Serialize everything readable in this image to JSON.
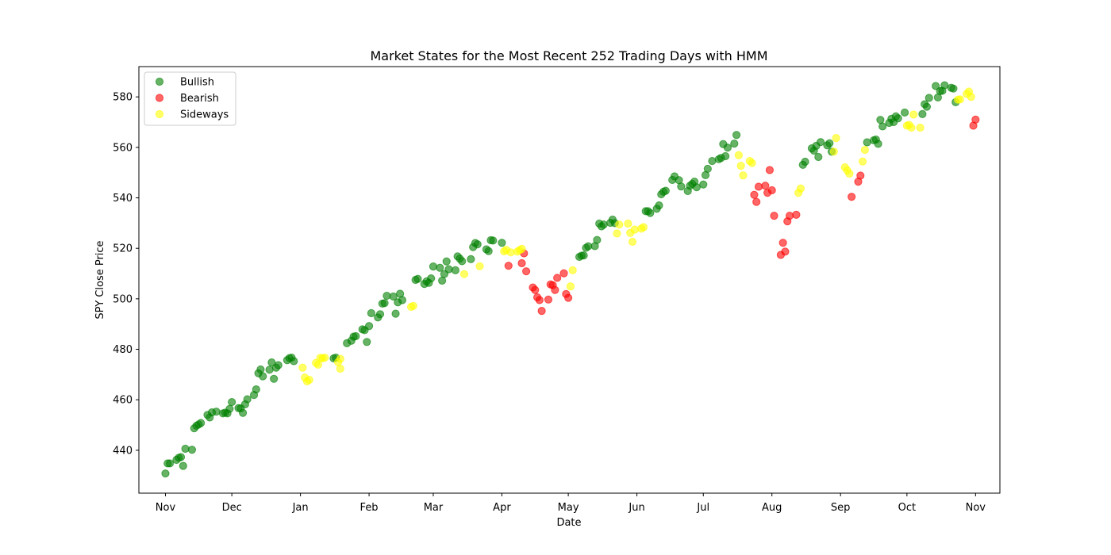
{
  "chart_data": {
    "type": "scatter",
    "title": "Market States for the Most Recent 252 Trading Days with HMM",
    "xlabel": "Date",
    "ylabel": "SPY Close Price",
    "x_axis": "date",
    "xlim": [
      "2023-10-20",
      "2024-11-12"
    ],
    "ylim": [
      423,
      592
    ],
    "yticks": [
      440,
      460,
      480,
      500,
      520,
      540,
      560,
      580
    ],
    "xticks": [
      {
        "date": "2023-11-01",
        "label": "Nov"
      },
      {
        "date": "2023-12-01",
        "label": "Dec"
      },
      {
        "date": "2024-01-01",
        "label": "Jan"
      },
      {
        "date": "2024-02-01",
        "label": "Feb"
      },
      {
        "date": "2024-03-01",
        "label": "Mar"
      },
      {
        "date": "2024-04-01",
        "label": "Apr"
      },
      {
        "date": "2024-05-01",
        "label": "May"
      },
      {
        "date": "2024-06-01",
        "label": "Jun"
      },
      {
        "date": "2024-07-01",
        "label": "Jul"
      },
      {
        "date": "2024-08-01",
        "label": "Aug"
      },
      {
        "date": "2024-09-01",
        "label": "Sep"
      },
      {
        "date": "2024-10-01",
        "label": "Oct"
      },
      {
        "date": "2024-11-01",
        "label": "Nov"
      }
    ],
    "grid": false,
    "legend_position": "top-left",
    "series": [
      {
        "name": "Bullish",
        "color": "#008000",
        "alpha": 0.6,
        "points": [
          [
            "2023-11-01",
            430.8
          ],
          [
            "2023-11-02",
            434.8
          ],
          [
            "2023-11-03",
            434.8
          ],
          [
            "2023-11-06",
            436.2
          ],
          [
            "2023-11-07",
            437.0
          ],
          [
            "2023-11-08",
            437.3
          ],
          [
            "2023-11-09",
            433.8
          ],
          [
            "2023-11-10",
            440.6
          ],
          [
            "2023-11-13",
            440.2
          ],
          [
            "2023-11-14",
            448.7
          ],
          [
            "2023-11-15",
            449.7
          ],
          [
            "2023-11-16",
            450.2
          ],
          [
            "2023-11-17",
            450.8
          ],
          [
            "2023-11-20",
            454.0
          ],
          [
            "2023-11-21",
            453.0
          ],
          [
            "2023-11-22",
            455.0
          ],
          [
            "2023-11-24",
            455.3
          ],
          [
            "2023-11-27",
            454.6
          ],
          [
            "2023-11-28",
            454.9
          ],
          [
            "2023-11-29",
            454.6
          ],
          [
            "2023-11-30",
            456.4
          ],
          [
            "2023-12-01",
            459.1
          ],
          [
            "2023-12-04",
            456.7
          ],
          [
            "2023-12-05",
            456.6
          ],
          [
            "2023-12-06",
            454.8
          ],
          [
            "2023-12-07",
            458.2
          ],
          [
            "2023-12-08",
            460.2
          ],
          [
            "2023-12-11",
            461.9
          ],
          [
            "2023-12-12",
            464.1
          ],
          [
            "2023-12-13",
            470.5
          ],
          [
            "2023-12-14",
            472.0
          ],
          [
            "2023-12-15",
            469.3
          ],
          [
            "2023-12-18",
            471.9
          ],
          [
            "2023-12-19",
            474.8
          ],
          [
            "2023-12-20",
            468.3
          ],
          [
            "2023-12-21",
            472.7
          ],
          [
            "2023-12-22",
            473.7
          ],
          [
            "2023-12-26",
            475.7
          ],
          [
            "2023-12-27",
            476.5
          ],
          [
            "2023-12-28",
            476.7
          ],
          [
            "2023-12-29",
            475.3
          ],
          [
            "2024-01-16",
            476.4
          ],
          [
            "2024-01-17",
            476.7
          ],
          [
            "2024-01-22",
            482.4
          ],
          [
            "2024-01-24",
            483.4
          ],
          [
            "2024-01-25",
            485.0
          ],
          [
            "2024-01-26",
            485.2
          ],
          [
            "2024-01-29",
            487.9
          ],
          [
            "2024-01-30",
            487.6
          ],
          [
            "2024-01-31",
            482.9
          ],
          [
            "2024-02-01",
            489.2
          ],
          [
            "2024-02-02",
            494.3
          ],
          [
            "2024-02-05",
            492.6
          ],
          [
            "2024-02-06",
            493.9
          ],
          [
            "2024-02-07",
            498.1
          ],
          [
            "2024-02-08",
            498.3
          ],
          [
            "2024-02-09",
            501.2
          ],
          [
            "2024-02-12",
            500.9
          ],
          [
            "2024-02-13",
            494.1
          ],
          [
            "2024-02-14",
            498.6
          ],
          [
            "2024-02-15",
            502.0
          ],
          [
            "2024-02-16",
            499.5
          ],
          [
            "2024-02-22",
            507.5
          ],
          [
            "2024-02-23",
            507.9
          ],
          [
            "2024-02-26",
            505.9
          ],
          [
            "2024-02-27",
            506.9
          ],
          [
            "2024-02-28",
            506.3
          ],
          [
            "2024-02-29",
            508.1
          ],
          [
            "2024-03-01",
            512.8
          ],
          [
            "2024-03-04",
            512.3
          ],
          [
            "2024-03-05",
            507.2
          ],
          [
            "2024-03-06",
            509.8
          ],
          [
            "2024-03-07",
            514.8
          ],
          [
            "2024-03-08",
            511.7
          ],
          [
            "2024-03-11",
            511.3
          ],
          [
            "2024-03-12",
            516.8
          ],
          [
            "2024-03-13",
            515.9
          ],
          [
            "2024-03-14",
            514.9
          ],
          [
            "2024-03-18",
            515.7
          ],
          [
            "2024-03-19",
            520.5
          ],
          [
            "2024-03-20",
            522.1
          ],
          [
            "2024-03-21",
            521.6
          ],
          [
            "2024-03-25",
            519.6
          ],
          [
            "2024-03-26",
            518.9
          ],
          [
            "2024-03-27",
            523.2
          ],
          [
            "2024-03-28",
            523.1
          ],
          [
            "2024-04-01",
            522.2
          ],
          [
            "2024-05-06",
            516.6
          ],
          [
            "2024-05-07",
            517.1
          ],
          [
            "2024-05-08",
            517.2
          ],
          [
            "2024-05-09",
            520.2
          ],
          [
            "2024-05-10",
            520.8
          ],
          [
            "2024-05-13",
            520.9
          ],
          [
            "2024-05-14",
            523.3
          ],
          [
            "2024-05-15",
            529.8
          ],
          [
            "2024-05-16",
            528.7
          ],
          [
            "2024-05-17",
            529.4
          ],
          [
            "2024-05-20",
            530.1
          ],
          [
            "2024-05-21",
            531.4
          ],
          [
            "2024-05-22",
            530.0
          ],
          [
            "2024-06-05",
            534.7
          ],
          [
            "2024-06-06",
            534.7
          ],
          [
            "2024-06-07",
            534.0
          ],
          [
            "2024-06-10",
            535.7
          ],
          [
            "2024-06-11",
            537.0
          ],
          [
            "2024-06-12",
            541.4
          ],
          [
            "2024-06-13",
            542.4
          ],
          [
            "2024-06-14",
            542.8
          ],
          [
            "2024-06-17",
            547.1
          ],
          [
            "2024-06-18",
            548.5
          ],
          [
            "2024-06-20",
            547.0
          ],
          [
            "2024-06-21",
            544.5
          ],
          [
            "2024-06-24",
            542.7
          ],
          [
            "2024-06-25",
            544.8
          ],
          [
            "2024-06-26",
            545.5
          ],
          [
            "2024-06-27",
            546.4
          ],
          [
            "2024-06-28",
            544.2
          ],
          [
            "2024-07-01",
            545.3
          ],
          [
            "2024-07-02",
            549.0
          ],
          [
            "2024-07-03",
            551.5
          ],
          [
            "2024-07-05",
            554.6
          ],
          [
            "2024-07-08",
            555.3
          ],
          [
            "2024-07-09",
            555.8
          ],
          [
            "2024-07-10",
            561.3
          ],
          [
            "2024-07-11",
            556.5
          ],
          [
            "2024-07-12",
            559.9
          ],
          [
            "2024-07-15",
            561.5
          ],
          [
            "2024-07-16",
            564.9
          ],
          [
            "2024-08-15",
            553.1
          ],
          [
            "2024-08-16",
            554.3
          ],
          [
            "2024-08-19",
            559.6
          ],
          [
            "2024-08-20",
            558.7
          ],
          [
            "2024-08-21",
            560.6
          ],
          [
            "2024-08-22",
            556.2
          ],
          [
            "2024-08-23",
            562.1
          ],
          [
            "2024-08-26",
            560.8
          ],
          [
            "2024-08-27",
            561.6
          ],
          [
            "2024-08-28",
            558.3
          ],
          [
            "2024-09-13",
            562.0
          ],
          [
            "2024-09-16",
            562.8
          ],
          [
            "2024-09-17",
            563.1
          ],
          [
            "2024-09-18",
            561.4
          ],
          [
            "2024-09-19",
            570.9
          ],
          [
            "2024-09-20",
            568.3
          ],
          [
            "2024-09-23",
            569.7
          ],
          [
            "2024-09-24",
            571.3
          ],
          [
            "2024-09-25",
            570.0
          ],
          [
            "2024-09-26",
            572.3
          ],
          [
            "2024-09-27",
            571.5
          ],
          [
            "2024-09-30",
            573.8
          ],
          [
            "2024-10-08",
            573.2
          ],
          [
            "2024-10-09",
            577.1
          ],
          [
            "2024-10-10",
            576.1
          ],
          [
            "2024-10-11",
            579.6
          ],
          [
            "2024-10-14",
            584.3
          ],
          [
            "2024-10-15",
            579.8
          ],
          [
            "2024-10-16",
            582.3
          ],
          [
            "2024-10-17",
            582.4
          ],
          [
            "2024-10-18",
            584.6
          ],
          [
            "2024-10-21",
            583.6
          ],
          [
            "2024-10-22",
            583.3
          ],
          [
            "2024-10-23",
            577.9
          ]
        ]
      },
      {
        "name": "Bearish",
        "color": "#ff0000",
        "alpha": 0.6,
        "points": [
          [
            "2024-04-04",
            513.1
          ],
          [
            "2024-04-10",
            514.1
          ],
          [
            "2024-04-11",
            518.0
          ],
          [
            "2024-04-12",
            510.9
          ],
          [
            "2024-04-15",
            504.5
          ],
          [
            "2024-04-16",
            503.5
          ],
          [
            "2024-04-17",
            500.6
          ],
          [
            "2024-04-18",
            499.5
          ],
          [
            "2024-04-19",
            495.2
          ],
          [
            "2024-04-22",
            499.7
          ],
          [
            "2024-04-23",
            505.7
          ],
          [
            "2024-04-24",
            505.4
          ],
          [
            "2024-04-25",
            503.5
          ],
          [
            "2024-04-26",
            508.3
          ],
          [
            "2024-04-29",
            510.1
          ],
          [
            "2024-04-30",
            501.9
          ],
          [
            "2024-05-01",
            500.4
          ],
          [
            "2024-07-24",
            541.2
          ],
          [
            "2024-07-25",
            538.4
          ],
          [
            "2024-07-26",
            544.4
          ],
          [
            "2024-07-29",
            544.8
          ],
          [
            "2024-07-30",
            542.0
          ],
          [
            "2024-07-31",
            551.0
          ],
          [
            "2024-08-01",
            543.0
          ],
          [
            "2024-08-02",
            532.9
          ],
          [
            "2024-08-05",
            517.4
          ],
          [
            "2024-08-06",
            522.2
          ],
          [
            "2024-08-07",
            518.7
          ],
          [
            "2024-08-08",
            530.7
          ],
          [
            "2024-08-09",
            532.9
          ],
          [
            "2024-08-12",
            533.3
          ],
          [
            "2024-09-06",
            540.4
          ],
          [
            "2024-09-09",
            546.4
          ],
          [
            "2024-09-10",
            548.8
          ],
          [
            "2024-10-31",
            568.6
          ],
          [
            "2024-11-01",
            571.0
          ]
        ]
      },
      {
        "name": "Sideways",
        "color": "#ffff00",
        "alpha": 0.6,
        "points": [
          [
            "2024-01-02",
            472.7
          ],
          [
            "2024-01-03",
            468.8
          ],
          [
            "2024-01-04",
            467.3
          ],
          [
            "2024-01-05",
            467.9
          ],
          [
            "2024-01-08",
            474.6
          ],
          [
            "2024-01-09",
            473.9
          ],
          [
            "2024-01-10",
            476.6
          ],
          [
            "2024-01-11",
            476.4
          ],
          [
            "2024-01-12",
            476.7
          ],
          [
            "2024-01-18",
            474.9
          ],
          [
            "2024-01-19",
            472.3
          ],
          [
            "2024-01-19",
            476.2
          ],
          [
            "2024-02-20",
            496.8
          ],
          [
            "2024-02-21",
            497.2
          ],
          [
            "2024-03-15",
            509.8
          ],
          [
            "2024-03-22",
            512.9
          ],
          [
            "2024-04-02",
            518.8
          ],
          [
            "2024-04-03",
            519.4
          ],
          [
            "2024-04-05",
            518.4
          ],
          [
            "2024-04-08",
            518.7
          ],
          [
            "2024-04-09",
            519.3
          ],
          [
            "2024-04-10",
            519.8
          ],
          [
            "2024-05-02",
            504.9
          ],
          [
            "2024-05-03",
            511.3
          ],
          [
            "2024-05-23",
            525.9
          ],
          [
            "2024-05-24",
            529.4
          ],
          [
            "2024-05-28",
            529.8
          ],
          [
            "2024-05-29",
            526.1
          ],
          [
            "2024-05-30",
            522.6
          ],
          [
            "2024-05-31",
            527.4
          ],
          [
            "2024-06-03",
            527.8
          ],
          [
            "2024-06-04",
            528.4
          ],
          [
            "2024-07-17",
            556.9
          ],
          [
            "2024-07-18",
            552.7
          ],
          [
            "2024-07-19",
            548.9
          ],
          [
            "2024-07-22",
            554.6
          ],
          [
            "2024-07-23",
            553.8
          ],
          [
            "2024-08-13",
            542.0
          ],
          [
            "2024-08-14",
            543.7
          ],
          [
            "2024-08-29",
            558.3
          ],
          [
            "2024-08-30",
            563.7
          ],
          [
            "2024-09-03",
            552.1
          ],
          [
            "2024-09-04",
            550.9
          ],
          [
            "2024-09-05",
            549.6
          ],
          [
            "2024-09-11",
            554.4
          ],
          [
            "2024-09-12",
            559.0
          ],
          [
            "2024-10-01",
            568.6
          ],
          [
            "2024-10-02",
            568.9
          ],
          [
            "2024-10-03",
            567.8
          ],
          [
            "2024-10-04",
            573.0
          ],
          [
            "2024-10-07",
            567.8
          ],
          [
            "2024-10-24",
            578.9
          ],
          [
            "2024-10-25",
            579.0
          ],
          [
            "2024-10-28",
            581.2
          ],
          [
            "2024-10-29",
            582.1
          ],
          [
            "2024-10-30",
            580.0
          ]
        ]
      }
    ]
  }
}
